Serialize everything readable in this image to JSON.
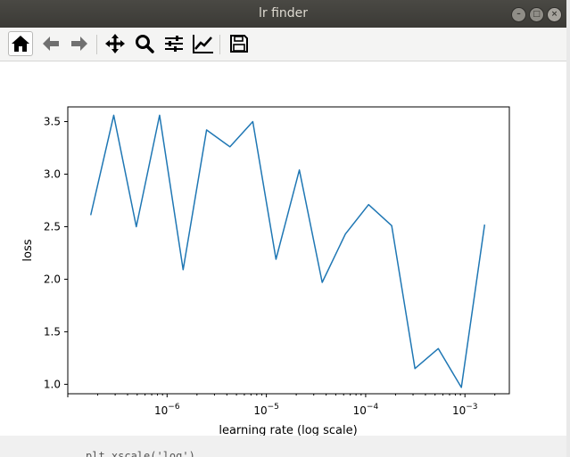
{
  "window": {
    "title": "lr finder",
    "controls": [
      "minimize",
      "maximize",
      "close"
    ]
  },
  "toolbar": {
    "buttons": [
      {
        "name": "home",
        "icon": "home-icon",
        "active": true
      },
      {
        "name": "back",
        "icon": "arrow-left-icon"
      },
      {
        "name": "forward",
        "icon": "arrow-right-icon"
      },
      {
        "name": "pan",
        "icon": "move-icon"
      },
      {
        "name": "zoom",
        "icon": "magnifier-icon"
      },
      {
        "name": "configure-subplots",
        "icon": "sliders-icon"
      },
      {
        "name": "edit-axis",
        "icon": "line-chart-icon"
      },
      {
        "name": "save",
        "icon": "floppy-disk-icon"
      }
    ]
  },
  "chart_data": {
    "type": "line",
    "xlabel": "learning rate (log scale)",
    "ylabel": "loss",
    "xscale": "log",
    "xlim": [
      1e-07,
      0.0028
    ],
    "ylim": [
      0.91,
      3.64
    ],
    "yticks": [
      "1.0",
      "1.5",
      "2.0",
      "2.5",
      "3.0",
      "3.5"
    ],
    "ytick_values": [
      1.0,
      1.5,
      2.0,
      2.5,
      3.0,
      3.5
    ],
    "xtick_values": [
      1e-06,
      1e-05,
      0.0001,
      0.001
    ],
    "xtick_bases": [
      "10",
      "10",
      "10",
      "10"
    ],
    "xtick_exponents": [
      "−6",
      "−5",
      "−4",
      "−3"
    ],
    "grid": false,
    "line_color": "#1f77b4",
    "series": [
      {
        "x": [
          1.7e-07,
          2.9e-07,
          4.9e-07,
          8.4e-07,
          1.45e-06,
          2.5e-06,
          4.3e-06,
          7.3e-06,
          1.25e-05,
          2.15e-05,
          3.65e-05,
          6.25e-05,
          0.000107,
          0.000183,
          0.000314,
          0.000538,
          0.00092,
          0.00158
        ],
        "y": [
          2.61,
          3.56,
          2.5,
          3.56,
          2.09,
          3.42,
          3.26,
          3.5,
          2.19,
          3.04,
          1.97,
          2.43,
          2.71,
          2.51,
          1.15,
          1.34,
          0.97,
          2.52
        ]
      }
    ]
  },
  "background_peek": {
    "code": "plt.xscale('log')"
  }
}
